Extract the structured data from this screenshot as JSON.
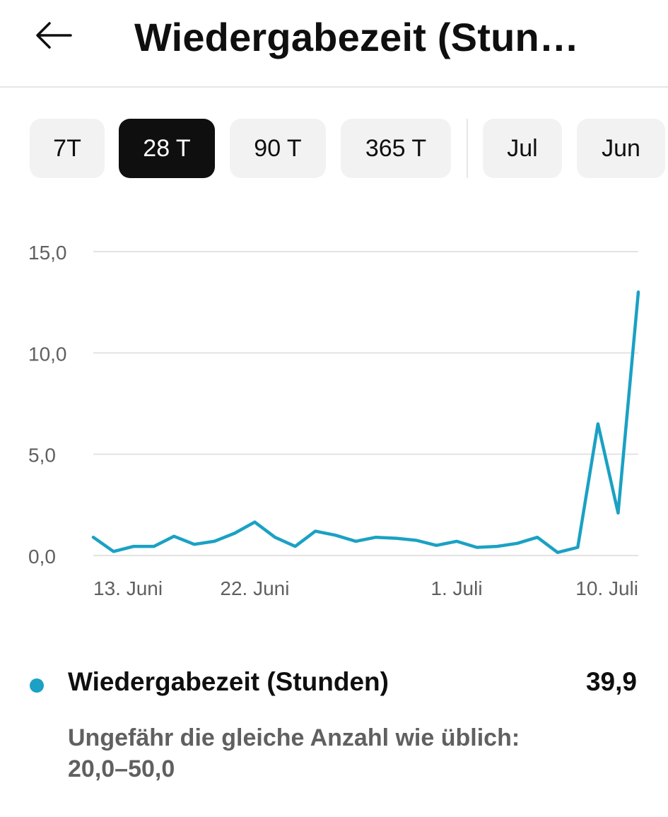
{
  "header": {
    "back_icon": "arrow-left-icon",
    "title": "Wiedergabezeit (Stun…"
  },
  "chips": [
    {
      "label": "7T",
      "selected": false
    },
    {
      "label": "28 T",
      "selected": true
    },
    {
      "label": "90 T",
      "selected": false
    },
    {
      "label": "365 T",
      "selected": false
    },
    {
      "label": "Jul",
      "selected": false
    },
    {
      "label": "Jun",
      "selected": false
    }
  ],
  "colors": {
    "accent": "#1aa1c4",
    "selected_chip": "#0f0f0f",
    "chip": "#f2f2f2"
  },
  "chart_data": {
    "type": "line",
    "y_ticks": [
      "15,0",
      "10,0",
      "5,0",
      "0,0"
    ],
    "y_tick_values": [
      15,
      10,
      5,
      0
    ],
    "ylim": [
      0,
      15
    ],
    "x_labels": [
      {
        "text": "13. Juni",
        "index": 1
      },
      {
        "text": "22. Juni",
        "index": 8
      },
      {
        "text": "1. Juli",
        "index": 18
      },
      {
        "text": "10. Juli",
        "index": 26
      }
    ],
    "series": [
      {
        "values": [
          0.9,
          0.2,
          0.45,
          0.45,
          0.95,
          0.55,
          0.7,
          1.1,
          1.65,
          0.9,
          0.45,
          1.2,
          1.0,
          0.7,
          0.9,
          0.85,
          0.75,
          0.5,
          0.7,
          0.4,
          0.45,
          0.6,
          0.9,
          0.15,
          0.4,
          6.5,
          2.1,
          13.0
        ]
      }
    ],
    "grid": true
  },
  "summary": {
    "metric_name": "Wiedergabezeit (Stunden)",
    "metric_value": "39,9",
    "note": "Ungefähr die gleiche Anzahl wie üblich: 20,0–50,0"
  }
}
